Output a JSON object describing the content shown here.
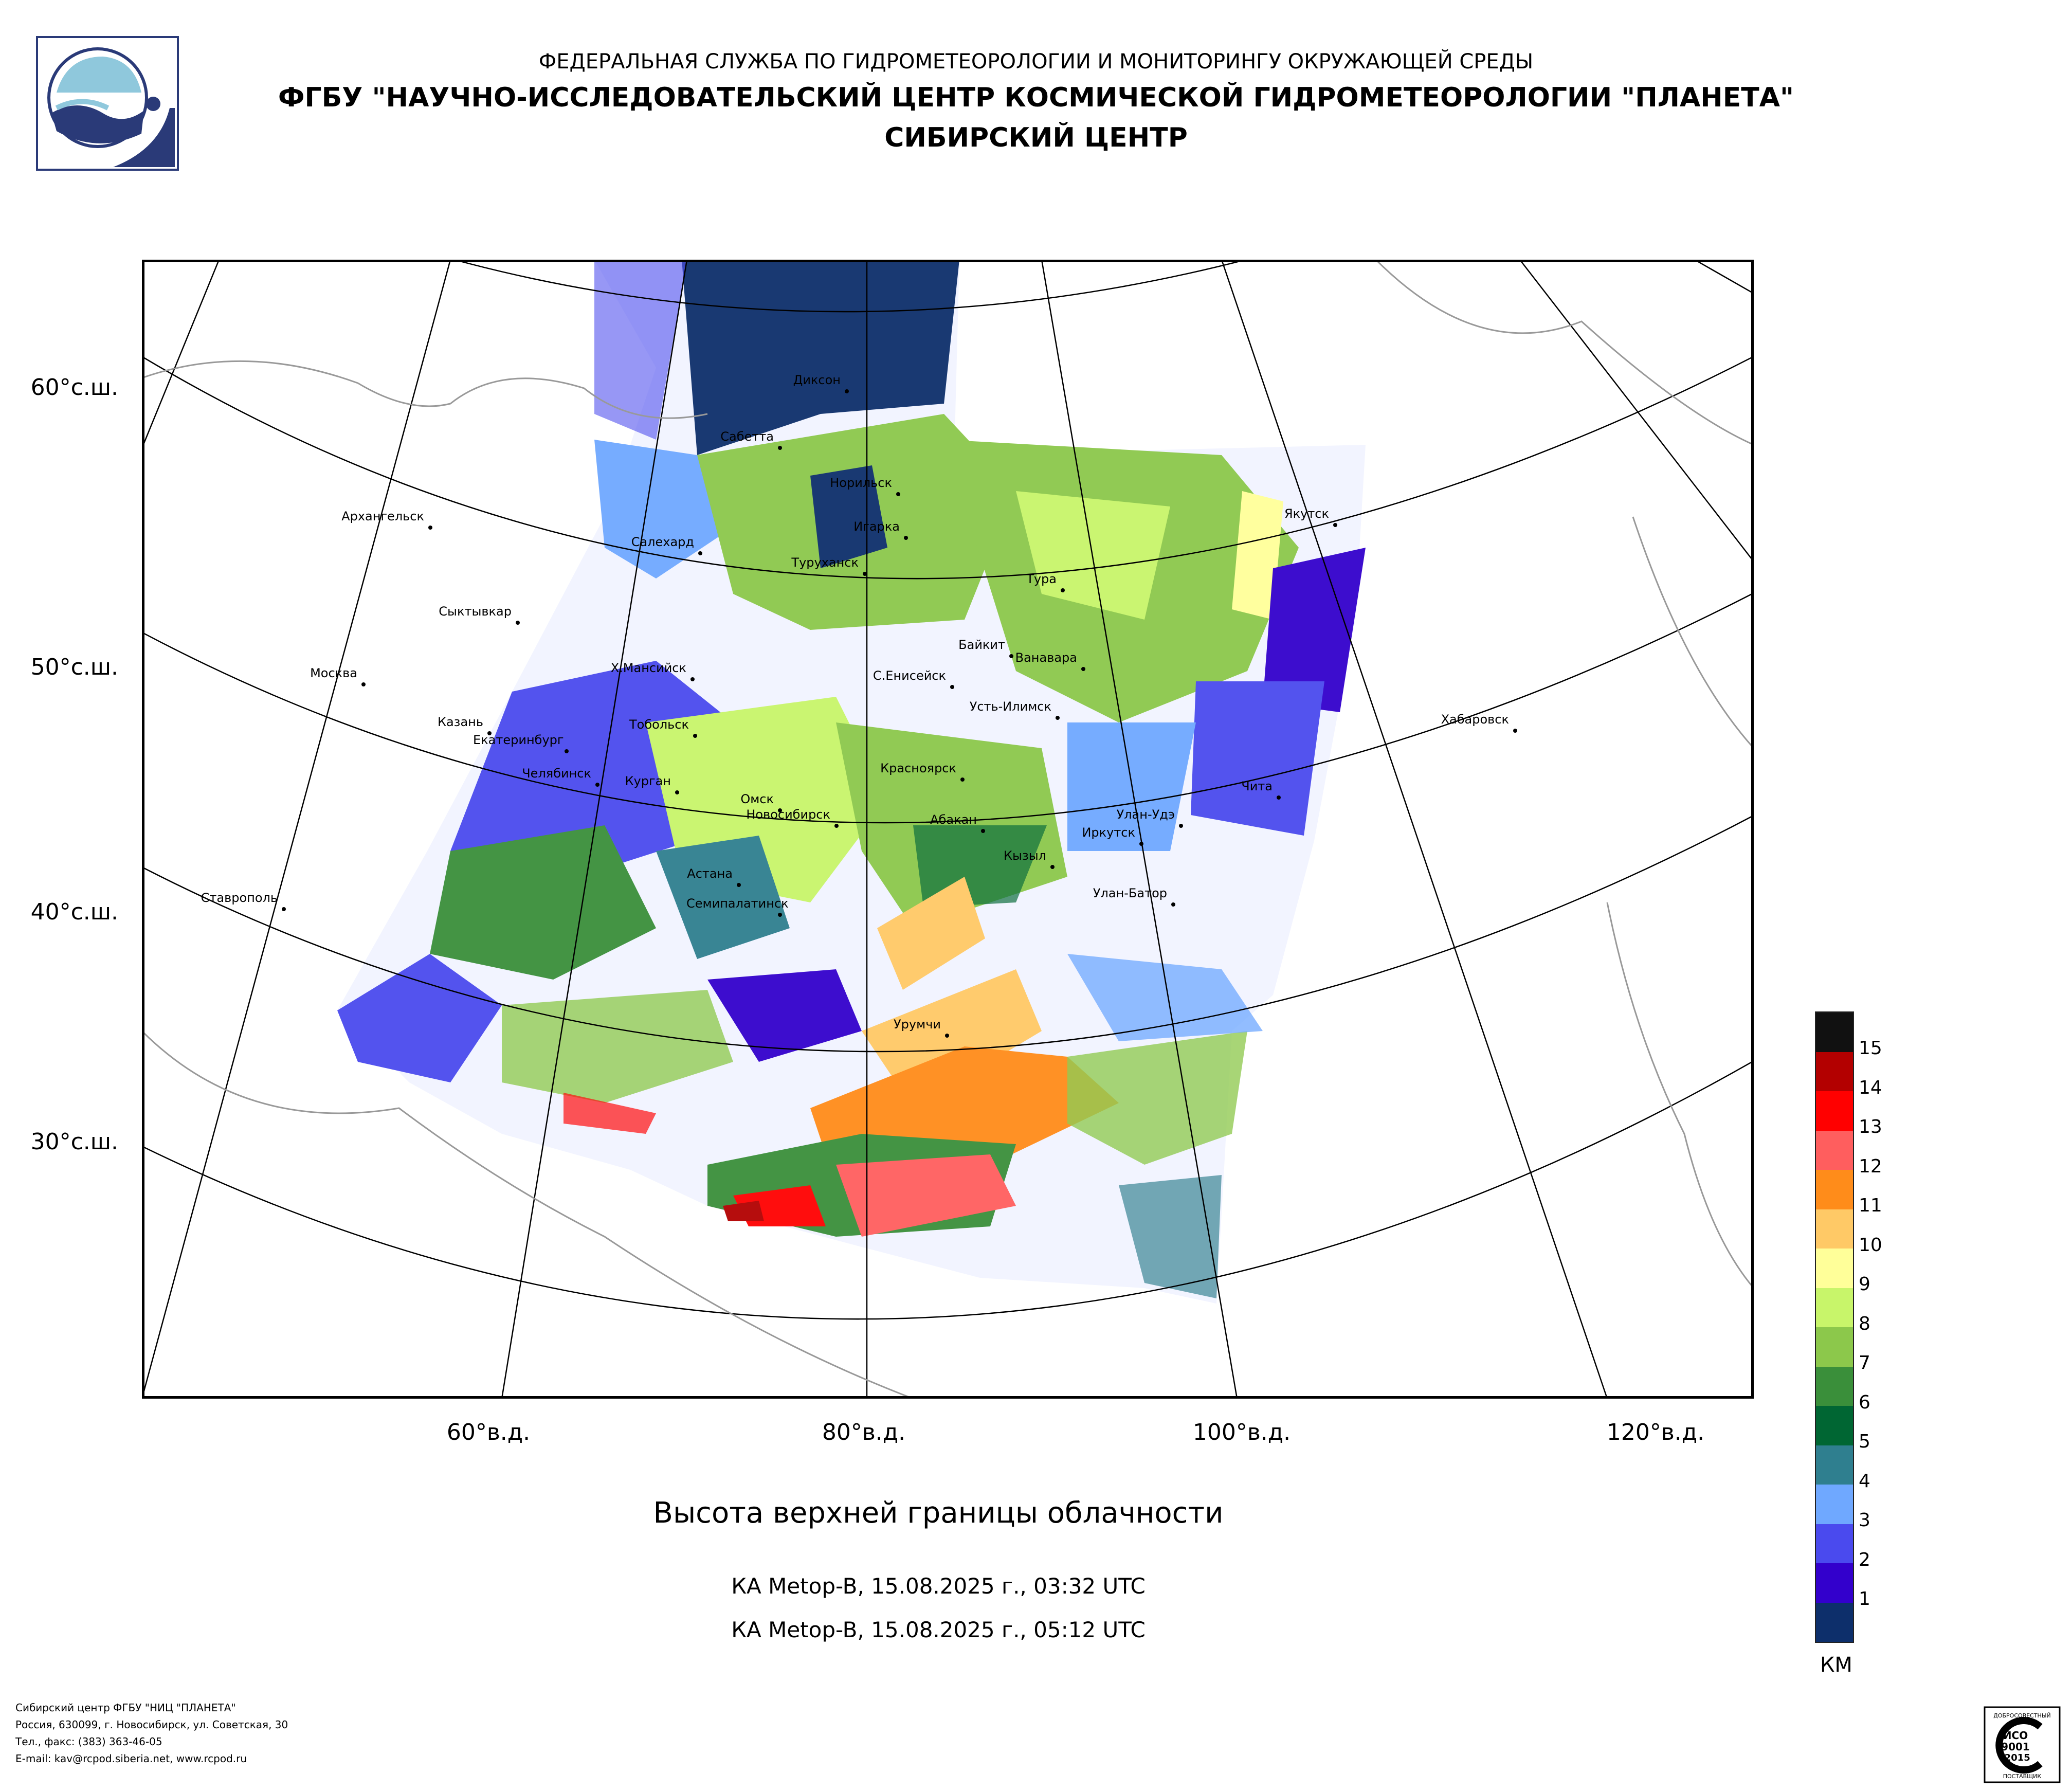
{
  "header": {
    "line1": "ФЕДЕРАЛЬНАЯ СЛУЖБА ПО ГИДРОМЕТЕОРОЛОГИИ И МОНИТОРИНГУ ОКРУЖАЮЩЕЙ СРЕДЫ",
    "line2": "ФГБУ \"НАУЧНО-ИССЛЕДОВАТЕЛЬСКИЙ ЦЕНТР КОСМИЧЕСКОЙ ГИДРОМЕТЕОРОЛОГИИ \"ПЛАНЕТА\"",
    "line3": "СИБИРСКИЙ ЦЕНТР"
  },
  "map": {
    "lat_labels": [
      "60°с.ш.",
      "50°с.ш.",
      "40°с.ш.",
      "30°с.ш."
    ],
    "lon_labels": [
      "60°в.д.",
      "80°в.д.",
      "100°в.д.",
      "120°в.д."
    ],
    "cities": [
      "Диксон",
      "Сабетта",
      "Норильск",
      "Архангельск",
      "Игарка",
      "Якутск",
      "Салехард",
      "Туруханск",
      "Тура",
      "Сыктывкар",
      "Байкит",
      "Ванавара",
      "Москва",
      "Х.Мансийск",
      "С.Енисейск",
      "Усть-Илимск",
      "Тобольск",
      "Казань",
      "Екатеринбург",
      "Хабаровск",
      "Челябинск",
      "Курган",
      "Красноярск",
      "Чита",
      "Омск",
      "Новосибирск",
      "Абакан",
      "Улан-Удэ",
      "Иркутск",
      "Кызыл",
      "Астана",
      "Улан-Батор",
      "Ставрополь",
      "Семипалатинск",
      "Урумчи"
    ]
  },
  "title": "Высота верхней границы облачности",
  "satellite_passes": [
    "КА Metop-B, 15.08.2025 г., 03:32 UTC",
    "КА Metop-B, 15.08.2025 г., 05:12 UTC"
  ],
  "legend": {
    "unit": "КМ",
    "labels": [
      "15",
      "14",
      "13",
      "12",
      "11",
      "10",
      "9",
      "8",
      "7",
      "6",
      "5",
      "4",
      "3",
      "2",
      "1"
    ],
    "colors": [
      "#111111",
      "#b30000",
      "#ff0000",
      "#ff5e5e",
      "#ff8c1a",
      "#ffc966",
      "#ffff99",
      "#c8f56a",
      "#8cc84b",
      "#3a8f3a",
      "#006633",
      "#2f7f8f",
      "#6fa8ff",
      "#4a4aee",
      "#3300cc",
      "#0d2f6b"
    ]
  },
  "footer": {
    "lines": [
      "Сибирский центр ФГБУ \"НИЦ \"ПЛАНЕТА\"",
      "Россия, 630099, г. Новосибирск, ул. Советская, 30",
      "Тел., факс: (383) 363-46-05",
      "E-mail: kav@rcpod.siberia.net, www.rcpod.ru"
    ]
  },
  "badge": {
    "top": "ДОБРОСОВЕСТНЫЙ",
    "mid1": "ИСО",
    "mid2": "9001",
    "mid3": "-2015",
    "bottom": "ПОСТАВЩИК"
  }
}
